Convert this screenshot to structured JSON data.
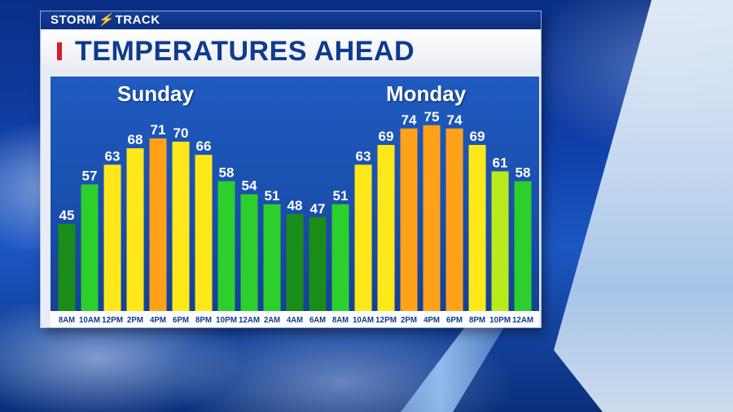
{
  "brand": {
    "left": "STORM",
    "right": "TRACK",
    "bolt_icon": "lightning-bolt-icon"
  },
  "title": "TEMPERATURES AHEAD",
  "colors": {
    "title_text": "#103a8f",
    "title_accent": "#d31f2b",
    "bar_dark_green": "#1a8c1a",
    "bar_green": "#2ccf2c",
    "bar_yellow_green": "#b8ea1c",
    "bar_yellow": "#ffe81a",
    "bar_orange": "#ffa21a"
  },
  "chart_data": {
    "type": "bar",
    "title": "TEMPERATURES AHEAD",
    "groups": [
      {
        "label": "Sunday",
        "start_index": 0,
        "end_index": 11
      },
      {
        "label": "Monday",
        "start_index": 12,
        "end_index": 20
      }
    ],
    "categories": [
      "8AM",
      "10AM",
      "12PM",
      "2PM",
      "4PM",
      "6PM",
      "8PM",
      "10PM",
      "12AM",
      "2AM",
      "4AM",
      "6AM",
      "8AM",
      "10AM",
      "12PM",
      "2PM",
      "4PM",
      "6PM",
      "8PM",
      "10PM",
      "12AM"
    ],
    "values": [
      45,
      57,
      63,
      68,
      71,
      70,
      66,
      58,
      54,
      51,
      48,
      47,
      51,
      63,
      69,
      74,
      75,
      74,
      69,
      61,
      58
    ],
    "bar_colors": [
      "dark_green",
      "green",
      "yellow",
      "yellow",
      "orange",
      "yellow",
      "yellow",
      "green",
      "green",
      "green",
      "dark_green",
      "dark_green",
      "green",
      "yellow",
      "yellow",
      "orange",
      "orange",
      "orange",
      "yellow",
      "yellow_green",
      "green"
    ],
    "xlabel": "",
    "ylabel": "",
    "grid": false,
    "legend": "none"
  }
}
